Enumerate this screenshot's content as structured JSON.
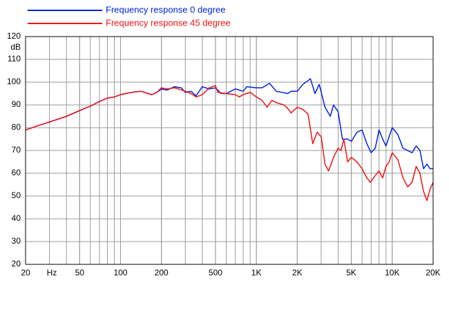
{
  "chart_data": {
    "type": "line",
    "y_unit": "dB",
    "x_unit": "Hz",
    "xscale": "log",
    "grid": true,
    "legend": "top-left",
    "xlim": [
      20,
      20000
    ],
    "ylim": [
      20,
      120
    ],
    "xticks": [
      20,
      50,
      100,
      200,
      500,
      {
        "value": 1000,
        "label": "1K"
      },
      {
        "value": 2000,
        "label": "2K"
      },
      {
        "value": 5000,
        "label": "5K"
      },
      {
        "value": 10000,
        "label": "10K"
      },
      {
        "value": 20000,
        "label": "20K"
      }
    ],
    "yticks": [
      20,
      30,
      40,
      50,
      60,
      70,
      80,
      90,
      100,
      110,
      120
    ],
    "series": [
      {
        "name": "Frequency response 0 degree",
        "color": "#0022dd",
        "x": [
          20,
          25,
          30,
          40,
          50,
          60,
          70,
          80,
          90,
          100,
          120,
          140,
          150,
          170,
          185,
          200,
          220,
          250,
          280,
          300,
          330,
          360,
          400,
          450,
          500,
          550,
          600,
          700,
          800,
          850,
          1000,
          1100,
          1250,
          1400,
          1700,
          1800,
          2000,
          2200,
          2500,
          2700,
          2900,
          3200,
          3500,
          3700,
          4000,
          4300,
          4700,
          5000,
          5500,
          6000,
          6500,
          7000,
          7500,
          8000,
          8500,
          9000,
          10000,
          11000,
          12000,
          13000,
          14000,
          15000,
          16000,
          17000,
          18000,
          19000,
          20000
        ],
        "values": [
          79,
          81,
          82.5,
          85,
          87.5,
          89.5,
          91.5,
          93,
          93.5,
          94.5,
          95.5,
          96,
          95.5,
          94.5,
          95.5,
          97,
          96.5,
          98,
          97.5,
          95.5,
          96,
          94,
          98,
          97,
          97.5,
          95,
          95,
          97,
          96,
          98,
          97.5,
          97.5,
          99.5,
          96,
          95,
          96,
          96,
          99,
          101.5,
          95,
          99,
          89,
          85,
          90,
          87,
          75,
          75,
          74,
          78,
          79,
          73,
          69,
          71,
          79,
          75,
          72,
          80,
          77,
          71,
          70,
          69,
          72,
          70,
          62,
          64,
          62,
          62
        ]
      },
      {
        "name": "Frequency response 45 degree",
        "color": "#ee1111",
        "x": [
          20,
          25,
          30,
          40,
          50,
          60,
          70,
          80,
          90,
          100,
          120,
          140,
          150,
          170,
          185,
          200,
          220,
          250,
          300,
          330,
          360,
          400,
          450,
          500,
          520,
          600,
          700,
          750,
          800,
          900,
          1000,
          1100,
          1200,
          1300,
          1400,
          1600,
          1700,
          1800,
          2000,
          2200,
          2400,
          2600,
          2800,
          3000,
          3200,
          3400,
          3700,
          4000,
          4200,
          4400,
          4700,
          5000,
          5500,
          6000,
          6500,
          6900,
          7500,
          8000,
          8500,
          9000,
          9500,
          10000,
          11000,
          12000,
          13000,
          14000,
          15000,
          16000,
          17000,
          18000,
          19000,
          20000
        ],
        "values": [
          79,
          81,
          82.5,
          85,
          87.5,
          89.5,
          91.5,
          93,
          93.5,
          94.5,
          95.5,
          96,
          95.5,
          94.5,
          95.5,
          97.5,
          97,
          97.5,
          96,
          95,
          93.5,
          94.5,
          97.5,
          98.5,
          95.5,
          95,
          94.5,
          93.5,
          94.5,
          95.5,
          93.5,
          92,
          89,
          92,
          91,
          90,
          88.5,
          86.5,
          89,
          88,
          86,
          73,
          78,
          76,
          64,
          61,
          67,
          71,
          70,
          75,
          65,
          67,
          65,
          62,
          58,
          56,
          59,
          61,
          58,
          63,
          65,
          69,
          66,
          58,
          54,
          56,
          63,
          60,
          52,
          48,
          53,
          56
        ]
      }
    ]
  }
}
